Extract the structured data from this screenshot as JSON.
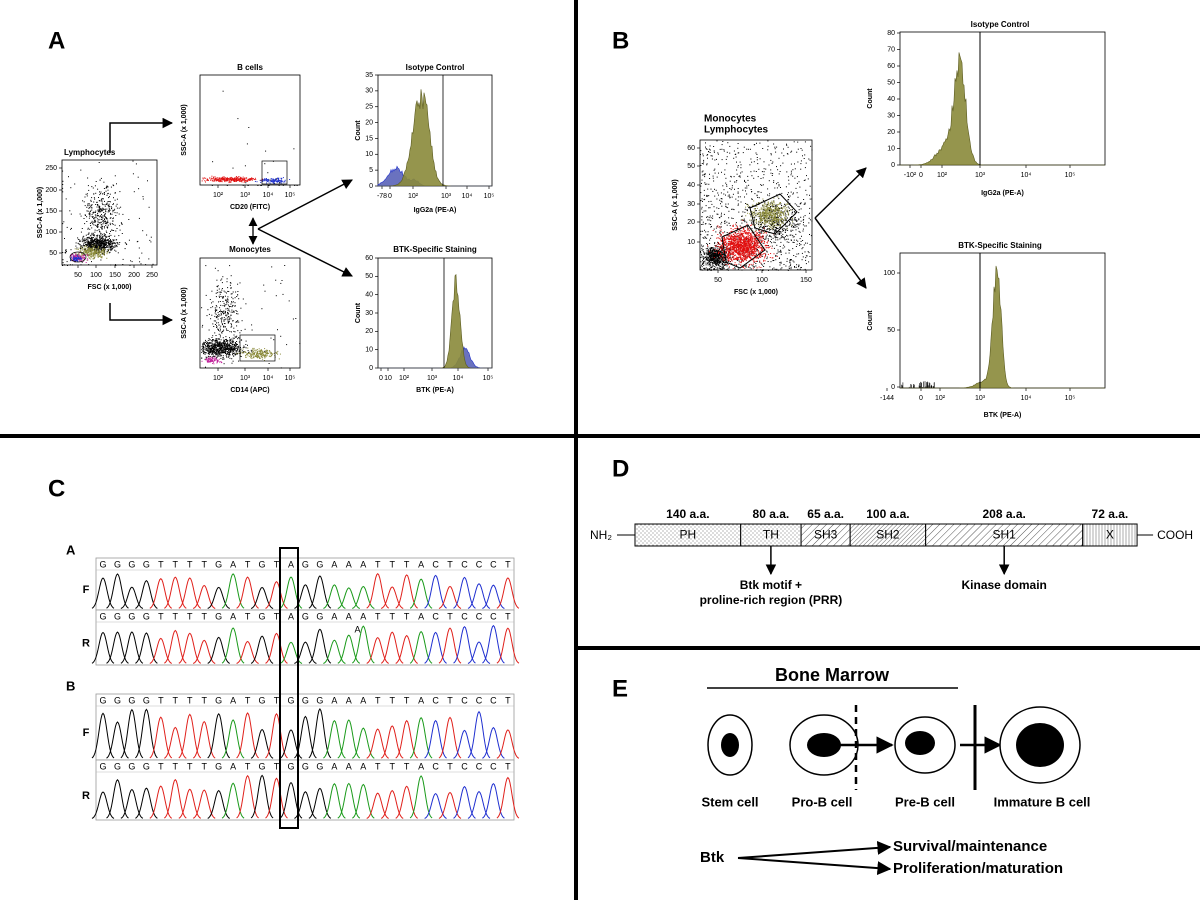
{
  "panel_a": {
    "label": "A",
    "lymphocytes": {
      "title": "Lymphocytes",
      "y_label": "SSC-A (x 1,000)",
      "x_label": "FSC (x 1,000)",
      "yticks": [
        250,
        200,
        150,
        100,
        50
      ],
      "xticks": [
        50,
        100,
        150,
        200,
        250
      ]
    },
    "b_cells": {
      "title": "B cells",
      "y_label": "SSC-A (x 1,000)",
      "x_label": "CD20 (FITC)",
      "xticks": [
        "10²",
        "10³",
        "10⁴",
        "10⁵"
      ]
    },
    "monocytes": {
      "title": "Monocytes",
      "y_label": "SSC-A (x 1,000)",
      "x_label": "CD14 (APC)",
      "xticks": [
        "10²",
        "10³",
        "10⁴",
        "10⁵"
      ]
    },
    "isotype": {
      "title": "Isotype Control",
      "y_label": "Count",
      "x_label": "IgG2a (PE-A)",
      "yticks": [
        35,
        30,
        25,
        20,
        15,
        10,
        5,
        0
      ],
      "xticks": [
        "-78",
        "0",
        "10²",
        "10³",
        "10⁴",
        "10⁵"
      ]
    },
    "btk": {
      "title": "BTK-Specific Staining",
      "y_label": "Count",
      "x_label": "BTK (PE-A)",
      "yticks": [
        60,
        50,
        40,
        30,
        20,
        10,
        0
      ],
      "xticks": [
        "0",
        "10",
        "10²",
        "10³",
        "10⁴",
        "10⁵"
      ]
    }
  },
  "panel_b": {
    "label": "B",
    "scatter": {
      "title_monocytes": "Monocytes",
      "title_lymphocytes": "Lymphocytes",
      "y_label": "SSC-A (x 1,000)",
      "x_label": "FSC (x 1,000)",
      "yticks": [
        60,
        50,
        40,
        30,
        20,
        10
      ],
      "xticks": [
        50,
        100,
        150
      ]
    },
    "isotype": {
      "title": "Isotype Control",
      "y_label": "Count",
      "x_label": "IgG2a (PE-A)",
      "yticks": [
        80,
        70,
        60,
        50,
        40,
        30,
        20,
        10,
        0
      ],
      "xticks": [
        "-10²",
        "0",
        "10²",
        "10³",
        "10⁴",
        "10⁵"
      ]
    },
    "btk": {
      "title": "BTK-Specific Staining",
      "y_label": "Count",
      "x_label": "BTK (PE-A)",
      "yticks": [
        100,
        50,
        0
      ],
      "xticks": [
        "-144",
        "0",
        "10²",
        "10³",
        "10⁴",
        "10⁵"
      ]
    }
  },
  "panel_c": {
    "label": "C",
    "base_colors": {
      "G": "#000000",
      "T": "#e0201b",
      "A": "#1a9a1a",
      "C": "#1f2fd0"
    },
    "samples": [
      {
        "label": "A",
        "reads": [
          {
            "label": "F",
            "bases": [
              "G",
              "G",
              "G",
              "G",
              "T",
              "T",
              "T",
              "T",
              "G",
              "A",
              "T",
              "G",
              "T",
              "A",
              "G",
              "G",
              "A",
              "A",
              "A",
              "T",
              "T",
              "T",
              "A",
              "C",
              "T",
              "C",
              "C",
              "C",
              "T"
            ]
          },
          {
            "label": "R",
            "bases": [
              "G",
              "G",
              "G",
              "G",
              "T",
              "T",
              "T",
              "T",
              "G",
              "A",
              "T",
              "G",
              "T",
              "A",
              "G",
              "G",
              "A",
              "A",
              "A",
              "T",
              "T",
              "T",
              "A",
              "C",
              "T",
              "C",
              "C",
              "C",
              "T"
            ],
            "secondary_peak": "A"
          }
        ]
      },
      {
        "label": "B",
        "reads": [
          {
            "label": "F",
            "bases": [
              "G",
              "G",
              "G",
              "G",
              "T",
              "T",
              "T",
              "T",
              "G",
              "A",
              "T",
              "G",
              "T",
              "G",
              "G",
              "G",
              "A",
              "A",
              "A",
              "T",
              "T",
              "T",
              "A",
              "C",
              "T",
              "C",
              "C",
              "C",
              "T"
            ]
          },
          {
            "label": "R",
            "bases": [
              "G",
              "G",
              "G",
              "G",
              "T",
              "T",
              "T",
              "T",
              "G",
              "A",
              "T",
              "G",
              "T",
              "G",
              "G",
              "G",
              "A",
              "A",
              "A",
              "T",
              "T",
              "T",
              "A",
              "C",
              "T",
              "C",
              "C",
              "C",
              "T"
            ]
          }
        ]
      }
    ]
  },
  "panel_d": {
    "label": "D",
    "n_terminus": "NH₂",
    "c_terminus": "COOH",
    "domains": [
      {
        "name": "PH",
        "length": {
          "value": 140,
          "label": "140 a.a."
        },
        "pattern": "dots"
      },
      {
        "name": "TH",
        "length": {
          "value": 80,
          "label": "80 a.a."
        },
        "pattern": "dots"
      },
      {
        "name": "SH3",
        "length": {
          "value": 65,
          "label": "65 a.a."
        },
        "pattern": "hatch"
      },
      {
        "name": "SH2",
        "length": {
          "value": 100,
          "label": "100 a.a."
        },
        "pattern": "hatch-dense"
      },
      {
        "name": "SH1",
        "length": {
          "value": 208,
          "label": "208 a.a."
        },
        "pattern": "hatch"
      },
      {
        "name": "X",
        "length": {
          "value": 72,
          "label": "72 a.a."
        },
        "pattern": "vlines"
      }
    ],
    "annotations": [
      {
        "domain": "TH",
        "lines": [
          "Btk motif +",
          "proline-rich region (PRR)"
        ]
      },
      {
        "domain": "SH1",
        "lines": [
          "Kinase domain"
        ]
      }
    ]
  },
  "panel_e": {
    "label": "E",
    "region": "Bone Marrow",
    "cells": [
      "Stem cell",
      "Pro-B cell",
      "Pre-B cell",
      "Immature B cell"
    ],
    "regulator": "Btk",
    "roles": [
      "Survival/maintenance",
      "Proliferation/maturation"
    ]
  }
}
